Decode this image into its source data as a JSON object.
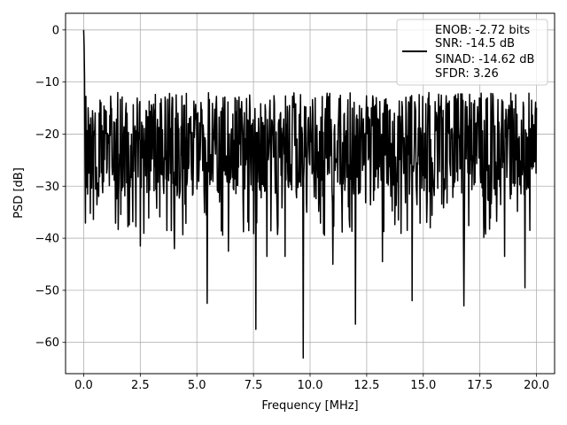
{
  "chart_data": {
    "type": "line",
    "title": "",
    "xlabel": "Frequency [MHz]",
    "ylabel": "PSD [dB]",
    "xlim": [
      -0.8,
      20.8
    ],
    "ylim": [
      -66,
      3.2
    ],
    "xticks": [
      0.0,
      2.5,
      5.0,
      7.5,
      10.0,
      12.5,
      15.0,
      17.5,
      20.0
    ],
    "xtick_labels": [
      "0.0",
      "2.5",
      "5.0",
      "7.5",
      "10.0",
      "12.5",
      "15.0",
      "17.5",
      "20.0"
    ],
    "yticks": [
      0,
      -10,
      -20,
      -30,
      -40,
      -50,
      -60
    ],
    "ytick_labels": [
      "0",
      "−10",
      "−20",
      "−30",
      "−40",
      "−50",
      "−60"
    ],
    "grid": true,
    "legend_position": "top-right",
    "line_color": "#000000",
    "series": [
      {
        "legend_lines": [
          "ENOB: -2.72 bits",
          "SNR: -14.5 dB",
          "SINAD: -14.62 dB",
          "SFDR: 3.26"
        ],
        "x_range": [
          0,
          20
        ],
        "num_points": 1024,
        "start_value": 0,
        "median_level": -24,
        "upper_envelope": -12,
        "notable_dips": [
          {
            "x": 2.5,
            "y": -41.5
          },
          {
            "x": 4.0,
            "y": -42.0
          },
          {
            "x": 5.45,
            "y": -52.5
          },
          {
            "x": 6.4,
            "y": -42.5
          },
          {
            "x": 7.6,
            "y": -57.5
          },
          {
            "x": 8.1,
            "y": -43.5
          },
          {
            "x": 8.9,
            "y": -43.5
          },
          {
            "x": 9.7,
            "y": -63.0
          },
          {
            "x": 11.0,
            "y": -45.0
          },
          {
            "x": 12.0,
            "y": -56.5
          },
          {
            "x": 13.2,
            "y": -44.5
          },
          {
            "x": 14.5,
            "y": -52.0
          },
          {
            "x": 16.8,
            "y": -53.0
          },
          {
            "x": 18.6,
            "y": -43.5
          },
          {
            "x": 19.5,
            "y": -49.5
          }
        ]
      }
    ]
  }
}
